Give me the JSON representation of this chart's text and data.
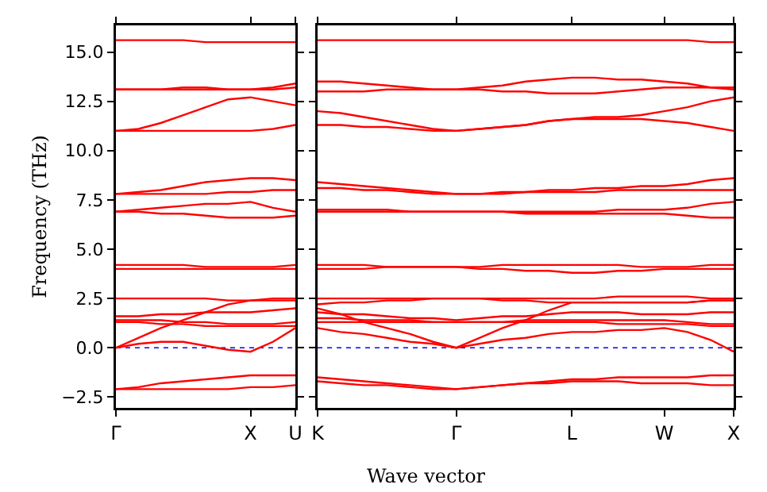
{
  "chart_data": [
    {
      "type": "line",
      "ylabel": "Frequency (THz)",
      "categories": [
        "Γ",
        null,
        null,
        null,
        null,
        null,
        "X",
        null,
        "U"
      ],
      "ylim": [
        -3.05,
        16.35
      ],
      "yticks": [
        {
          "value": -2.5,
          "label": "−2.5"
        },
        {
          "value": 0,
          "label": "0.0"
        },
        {
          "value": 2.5,
          "label": "2.5"
        },
        {
          "value": 5,
          "label": "5.0"
        },
        {
          "value": 7.5,
          "label": "7.5"
        },
        {
          "value": 10,
          "label": "10.0"
        },
        {
          "value": 12.5,
          "label": "12.5"
        },
        {
          "value": 15,
          "label": "15.0"
        }
      ],
      "line_style": "solid",
      "ref_lines": [
        {
          "axis": "y",
          "value": 0,
          "color": "#0000ff",
          "line_style": "dotted"
        }
      ],
      "series": [
        {
          "color": "#ff0000",
          "values": [
            15.6,
            15.6,
            15.6,
            15.6,
            15.5,
            15.5,
            15.5,
            15.5,
            15.5
          ]
        },
        {
          "color": "#ff0000",
          "values": [
            13.1,
            13.1,
            13.1,
            13.2,
            13.2,
            13.1,
            13.1,
            13.2,
            13.4
          ]
        },
        {
          "color": "#ff0000",
          "values": [
            13.1,
            13.1,
            13.1,
            13.1,
            13.1,
            13.1,
            13.1,
            13.1,
            13.2
          ]
        },
        {
          "color": "#ff0000",
          "values": [
            11.0,
            11.1,
            11.4,
            11.8,
            12.2,
            12.6,
            12.7,
            12.5,
            12.3
          ]
        },
        {
          "color": "#ff0000",
          "values": [
            11.0,
            11.0,
            11.0,
            11.0,
            11.0,
            11.0,
            11.0,
            11.1,
            11.3
          ]
        },
        {
          "color": "#ff0000",
          "values": [
            7.8,
            7.9,
            8.0,
            8.2,
            8.4,
            8.5,
            8.6,
            8.6,
            8.5
          ]
        },
        {
          "color": "#ff0000",
          "values": [
            7.8,
            7.8,
            7.8,
            7.8,
            7.8,
            7.9,
            7.9,
            8.0,
            8.0
          ]
        },
        {
          "color": "#ff0000",
          "values": [
            6.9,
            7.0,
            7.1,
            7.2,
            7.3,
            7.3,
            7.4,
            7.1,
            6.9
          ]
        },
        {
          "color": "#ff0000",
          "values": [
            6.9,
            6.9,
            6.8,
            6.8,
            6.7,
            6.6,
            6.6,
            6.6,
            6.7
          ]
        },
        {
          "color": "#ff0000",
          "values": [
            4.2,
            4.2,
            4.2,
            4.2,
            4.1,
            4.1,
            4.1,
            4.1,
            4.2
          ]
        },
        {
          "color": "#ff0000",
          "values": [
            4.0,
            4.0,
            4.0,
            4.0,
            4.0,
            4.0,
            4.0,
            4.0,
            4.0
          ]
        },
        {
          "color": "#ff0000",
          "values": [
            2.5,
            2.5,
            2.5,
            2.5,
            2.5,
            2.4,
            2.4,
            2.5,
            2.5
          ]
        },
        {
          "color": "#ff0000",
          "values": [
            0,
            0.5,
            1.0,
            1.4,
            1.8,
            2.2,
            2.4,
            2.4,
            2.4
          ]
        },
        {
          "color": "#ff0000",
          "values": [
            1.6,
            1.6,
            1.7,
            1.7,
            1.8,
            1.8,
            1.8,
            1.9,
            2.0
          ]
        },
        {
          "color": "#ff0000",
          "values": [
            1.4,
            1.4,
            1.4,
            1.3,
            1.3,
            1.2,
            1.2,
            1.2,
            1.3
          ]
        },
        {
          "color": "#ff0000",
          "values": [
            1.3,
            1.3,
            1.2,
            1.2,
            1.1,
            1.1,
            1.1,
            1.1,
            1.1
          ]
        },
        {
          "color": "#ff0000",
          "values": [
            0,
            0.2,
            0.3,
            0.3,
            0.1,
            -0.1,
            -0.2,
            0.3,
            1.0
          ]
        },
        {
          "color": "#ff0000",
          "values": [
            -2.1,
            -2.0,
            -1.8,
            -1.7,
            -1.6,
            -1.5,
            -1.4,
            -1.4,
            -1.4
          ]
        },
        {
          "color": "#ff0000",
          "values": [
            -2.1,
            -2.1,
            -2.1,
            -2.1,
            -2.1,
            -2.1,
            -2.0,
            -2.0,
            -1.9
          ]
        }
      ]
    },
    {
      "type": "line",
      "xlabel": "Wave vector",
      "categories": [
        "K",
        null,
        null,
        null,
        null,
        null,
        "Γ",
        null,
        null,
        null,
        null,
        "L",
        null,
        null,
        null,
        "W",
        null,
        null,
        "X"
      ],
      "ylim": [
        -3.05,
        16.35
      ],
      "yticks": [
        {
          "value": -2.5,
          "label": null
        },
        {
          "value": 0,
          "label": null
        },
        {
          "value": 2.5,
          "label": null
        },
        {
          "value": 5,
          "label": null
        },
        {
          "value": 7.5,
          "label": null
        },
        {
          "value": 10,
          "label": null
        },
        {
          "value": 12.5,
          "label": null
        },
        {
          "value": 15,
          "label": null
        }
      ],
      "tick_labels": "x",
      "line_style": "solid",
      "ref_lines": [
        {
          "axis": "y",
          "value": 0,
          "color": "#0000ff",
          "line_style": "dotted"
        }
      ],
      "series": [
        {
          "color": "#ff0000",
          "values": [
            15.6,
            15.6,
            15.6,
            15.6,
            15.6,
            15.6,
            15.6,
            15.6,
            15.6,
            15.6,
            15.6,
            15.6,
            15.6,
            15.6,
            15.6,
            15.6,
            15.6,
            15.5,
            15.5
          ]
        },
        {
          "color": "#ff0000",
          "values": [
            13.5,
            13.5,
            13.4,
            13.3,
            13.2,
            13.1,
            13.1,
            13.2,
            13.3,
            13.5,
            13.6,
            13.7,
            13.7,
            13.6,
            13.6,
            13.5,
            13.4,
            13.2,
            13.1
          ]
        },
        {
          "color": "#ff0000",
          "values": [
            13.0,
            13.0,
            13.0,
            13.1,
            13.1,
            13.1,
            13.1,
            13.1,
            13.0,
            13.0,
            12.9,
            12.9,
            12.9,
            13.0,
            13.1,
            13.2,
            13.2,
            13.2,
            13.2
          ]
        },
        {
          "color": "#ff0000",
          "values": [
            12.0,
            11.9,
            11.7,
            11.5,
            11.3,
            11.1,
            11.0,
            11.1,
            11.2,
            11.3,
            11.5,
            11.6,
            11.7,
            11.7,
            11.8,
            12.0,
            12.2,
            12.5,
            12.7
          ]
        },
        {
          "color": "#ff0000",
          "values": [
            11.3,
            11.3,
            11.2,
            11.2,
            11.1,
            11.0,
            11.0,
            11.1,
            11.2,
            11.3,
            11.5,
            11.6,
            11.6,
            11.6,
            11.6,
            11.5,
            11.4,
            11.2,
            11.0
          ]
        },
        {
          "color": "#ff0000",
          "values": [
            8.4,
            8.3,
            8.2,
            8.1,
            8.0,
            7.9,
            7.8,
            7.8,
            7.9,
            7.9,
            8.0,
            8.0,
            8.1,
            8.1,
            8.2,
            8.2,
            8.3,
            8.5,
            8.6
          ]
        },
        {
          "color": "#ff0000",
          "values": [
            8.1,
            8.1,
            8.0,
            8.0,
            7.9,
            7.8,
            7.8,
            7.8,
            7.8,
            7.9,
            7.9,
            7.9,
            7.9,
            8.0,
            8.0,
            8.0,
            8.0,
            8.0,
            8.0
          ]
        },
        {
          "color": "#ff0000",
          "values": [
            7.0,
            7.0,
            7.0,
            7.0,
            6.9,
            6.9,
            6.9,
            6.9,
            6.9,
            6.9,
            6.9,
            6.9,
            6.9,
            7.0,
            7.0,
            7.0,
            7.1,
            7.3,
            7.4
          ]
        },
        {
          "color": "#ff0000",
          "values": [
            6.9,
            6.9,
            6.9,
            6.9,
            6.9,
            6.9,
            6.9,
            6.9,
            6.9,
            6.8,
            6.8,
            6.8,
            6.8,
            6.8,
            6.8,
            6.8,
            6.7,
            6.6,
            6.6
          ]
        },
        {
          "color": "#ff0000",
          "values": [
            4.2,
            4.2,
            4.2,
            4.1,
            4.1,
            4.1,
            4.1,
            4.1,
            4.2,
            4.2,
            4.2,
            4.2,
            4.2,
            4.2,
            4.1,
            4.1,
            4.1,
            4.2,
            4.2
          ]
        },
        {
          "color": "#ff0000",
          "values": [
            4.0,
            4.0,
            4.0,
            4.1,
            4.1,
            4.1,
            4.1,
            4.0,
            4.0,
            3.9,
            3.9,
            3.8,
            3.8,
            3.9,
            3.9,
            4.0,
            4.0,
            4.0,
            4.0
          ]
        },
        {
          "color": "#ff0000",
          "values": [
            2.5,
            2.5,
            2.5,
            2.5,
            2.5,
            2.5,
            2.5,
            2.5,
            2.5,
            2.5,
            2.5,
            2.5,
            2.5,
            2.6,
            2.6,
            2.6,
            2.6,
            2.5,
            2.5
          ]
        },
        {
          "color": "#ff0000",
          "values": [
            2.2,
            2.3,
            2.3,
            2.4,
            2.4,
            2.5,
            2.5,
            2.5,
            2.4,
            2.4,
            2.3,
            2.3,
            2.3,
            2.3,
            2.3,
            2.3,
            2.3,
            2.4,
            2.4
          ]
        },
        {
          "color": "#ff0000",
          "values": [
            1.8,
            1.7,
            1.7,
            1.6,
            1.5,
            1.5,
            1.4,
            1.5,
            1.6,
            1.6,
            1.7,
            1.8,
            1.8,
            1.8,
            1.7,
            1.7,
            1.7,
            1.8,
            1.8
          ]
        },
        {
          "color": "#ff0000",
          "values": [
            1.5,
            1.5,
            1.4,
            1.4,
            1.4,
            1.3,
            1.3,
            1.3,
            1.3,
            1.4,
            1.4,
            1.4,
            1.4,
            1.4,
            1.4,
            1.4,
            1.3,
            1.2,
            1.2
          ]
        },
        {
          "color": "#ff0000",
          "values": [
            1.3,
            1.3,
            1.3,
            1.3,
            1.3,
            1.3,
            1.3,
            1.3,
            1.3,
            1.3,
            1.3,
            1.3,
            1.3,
            1.2,
            1.2,
            1.2,
            1.2,
            1.1,
            1.1
          ]
        },
        {
          "color": "#ff0000",
          "values": [
            1.0,
            0.8,
            0.7,
            0.5,
            0.3,
            0.2,
            0,
            0.2,
            0.4,
            0.5,
            0.7,
            0.8,
            0.8,
            0.9,
            0.9,
            1.0,
            0.8,
            0.4,
            -0.2
          ]
        },
        {
          "color": "#ff0000",
          "values": [
            2.0,
            1.7,
            1.3,
            1.0,
            0.7,
            0.3,
            0,
            0.5,
            1.0,
            1.4,
            1.9,
            2.3,
            2.3,
            2.3,
            2.3,
            2.3,
            2.3,
            2.4,
            2.4
          ]
        },
        {
          "color": "#ff0000",
          "values": [
            -1.5,
            -1.6,
            -1.7,
            -1.8,
            -1.9,
            -2.0,
            -2.1,
            -2.0,
            -1.9,
            -1.8,
            -1.7,
            -1.6,
            -1.6,
            -1.5,
            -1.5,
            -1.5,
            -1.5,
            -1.4,
            -1.4
          ]
        },
        {
          "color": "#ff0000",
          "values": [
            -1.7,
            -1.8,
            -1.9,
            -1.9,
            -2.0,
            -2.1,
            -2.1,
            -2.0,
            -1.9,
            -1.8,
            -1.8,
            -1.7,
            -1.7,
            -1.7,
            -1.8,
            -1.8,
            -1.8,
            -1.9,
            -1.9
          ]
        }
      ]
    }
  ]
}
